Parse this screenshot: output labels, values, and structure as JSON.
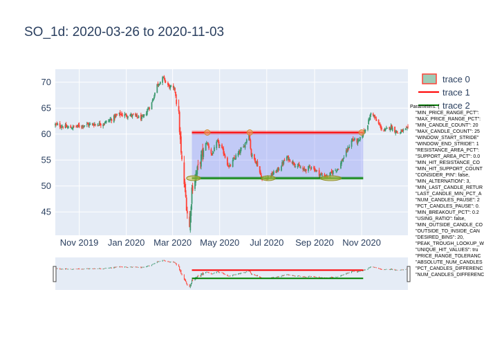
{
  "chart_data": {
    "type": "candlestick",
    "title": "SO_1d: 2020-03-26 to 2020-11-03",
    "x_tick_labels": [
      "Nov 2019",
      "Jan 2020",
      "Mar 2020",
      "May 2020",
      "Jul 2020",
      "Sep 2020",
      "Nov 2020"
    ],
    "x_tick_dates": [
      "2019-11-01",
      "2020-01-01",
      "2020-03-01",
      "2020-05-01",
      "2020-07-01",
      "2020-09-01",
      "2020-11-01"
    ],
    "x_range": [
      "2019-10-01",
      "2020-12-31"
    ],
    "y_tick_labels": [
      "45",
      "50",
      "55",
      "60",
      "65",
      "70"
    ],
    "y_ticks": [
      45,
      50,
      55,
      60,
      65,
      70
    ],
    "ylim": [
      40.5,
      72.5
    ],
    "grid": true,
    "legend": [
      "trace 0",
      "trace 1",
      "trace 2"
    ],
    "legend_position": "right",
    "colors": {
      "increasing": "#3d9970",
      "decreasing": "#ff4136",
      "resistance": "#ff0000",
      "support": "#008000",
      "band": "#6f7cf6",
      "hit": "#f4a261",
      "background": "#e5ecf6"
    },
    "close_anchors": [
      [
        "2019-10-01",
        61.8
      ],
      [
        "2019-10-20",
        61.2
      ],
      [
        "2019-11-10",
        61.8
      ],
      [
        "2019-12-01",
        62.0
      ],
      [
        "2019-12-12",
        62.8
      ],
      [
        "2019-12-22",
        63.8
      ],
      [
        "2020-01-08",
        63.6
      ],
      [
        "2020-01-22",
        63.0
      ],
      [
        "2020-02-03",
        66.0
      ],
      [
        "2020-02-10",
        69.5
      ],
      [
        "2020-02-18",
        70.8
      ],
      [
        "2020-02-25",
        69.2
      ],
      [
        "2020-03-04",
        68.5
      ],
      [
        "2020-03-09",
        63.5
      ],
      [
        "2020-03-12",
        56.0
      ],
      [
        "2020-03-16",
        50.5
      ],
      [
        "2020-03-20",
        45.0
      ],
      [
        "2020-03-23",
        42.0
      ],
      [
        "2020-03-26",
        49.5
      ],
      [
        "2020-03-30",
        51.5
      ],
      [
        "2020-04-06",
        55.0
      ],
      [
        "2020-04-14",
        58.5
      ],
      [
        "2020-04-21",
        56.0
      ],
      [
        "2020-04-28",
        58.5
      ],
      [
        "2020-05-06",
        56.5
      ],
      [
        "2020-05-13",
        53.5
      ],
      [
        "2020-05-21",
        55.5
      ],
      [
        "2020-06-01",
        57.5
      ],
      [
        "2020-06-08",
        60.2
      ],
      [
        "2020-06-11",
        56.0
      ],
      [
        "2020-06-18",
        54.5
      ],
      [
        "2020-06-25",
        51.2
      ],
      [
        "2020-07-06",
        52.0
      ],
      [
        "2020-07-16",
        53.2
      ],
      [
        "2020-07-27",
        55.5
      ],
      [
        "2020-08-07",
        54.2
      ],
      [
        "2020-08-18",
        53.0
      ],
      [
        "2020-08-28",
        53.8
      ],
      [
        "2020-09-08",
        52.2
      ],
      [
        "2020-09-18",
        51.8
      ],
      [
        "2020-09-25",
        52.8
      ],
      [
        "2020-10-02",
        53.5
      ],
      [
        "2020-10-12",
        56.5
      ],
      [
        "2020-10-20",
        59.0
      ],
      [
        "2020-10-28",
        58.5
      ],
      [
        "2020-11-03",
        60.2
      ],
      [
        "2020-11-09",
        62.0
      ],
      [
        "2020-11-14",
        64.5
      ],
      [
        "2020-11-20",
        62.5
      ],
      [
        "2020-11-30",
        60.5
      ],
      [
        "2020-12-08",
        61.5
      ],
      [
        "2020-12-18",
        60.2
      ],
      [
        "2020-12-31",
        61.0
      ]
    ],
    "resistance": {
      "x0": "2020-03-26",
      "x1": "2020-11-03",
      "y": 60.3
    },
    "support": {
      "x0": "2020-03-26",
      "x1": "2020-11-03",
      "y": 51.5
    },
    "band": {
      "x0": "2020-03-26",
      "x1": "2020-11-03",
      "y0": 51.5,
      "y1": 60.3
    },
    "resistance_hits": [
      {
        "date": "2020-04-15",
        "y": 60.3
      },
      {
        "date": "2020-06-09",
        "y": 60.3
      },
      {
        "date": "2020-11-01",
        "y": 60.3
      }
    ],
    "support_hits": [
      {
        "date": "2020-03-28",
        "y": 51.5
      },
      {
        "date": "2020-07-03",
        "y": 51.5
      },
      {
        "date": "2020-09-22",
        "y": 51.5
      }
    ]
  },
  "parameters": {
    "header": "Parameters: {",
    "lines": [
      "\"MIN_PRICE_RANGE_PCT\":",
      "\"MAX_PRICE_RANGE_PCT\":",
      "\"MIN_CANDLE_COUNT\": 20",
      "\"MAX_CANDLE_COUNT\": 25",
      "\"WINDOW_START_STRIDE\"",
      "\"WINDOW_END_STRIDE\": 1",
      "\"RESISTANCE_AREA_PCT\":",
      "\"SUPPORT_AREA_PCT\": 0.0",
      "\"MIN_HIT_RESISTANCE_CO",
      "\"MIN_HIT_SUPPORT_COUNT",
      "\"CONSIDER_PIN\": false,",
      "\"MIN_ALTERNATION\": 3,",
      "\"MIN_LAST_CANDLE_RETUR",
      "\"LAST_CANDLE_MIN_PCT_A",
      "\"NUM_CANDLES_PAUSE\": 2",
      "\"PCT_CANDLES_PAUSE\": 0.",
      "\"MIN_BREAKOUT_PCT\": 0.2",
      "\"USING_RATIO\": false,",
      "\"MIN_OUTSIDE_CANDLE_CO",
      "\"OUTSIDE_TO_INSIDE_CAN",
      "\"DESIRED_BINS\": 20,",
      "\"PEAK_TROUGH_LOOKUP_W",
      "\"UNIQUE_HIT_VALUES\": tru",
      "\"PRICE_RANGE_TOLERANC",
      "\"ABSOLUTE_NUM_CANDLES",
      "\"PCT_CANDLES_DIFFERENC",
      "\"NUM_CANDLES_DIFFERENC"
    ]
  }
}
